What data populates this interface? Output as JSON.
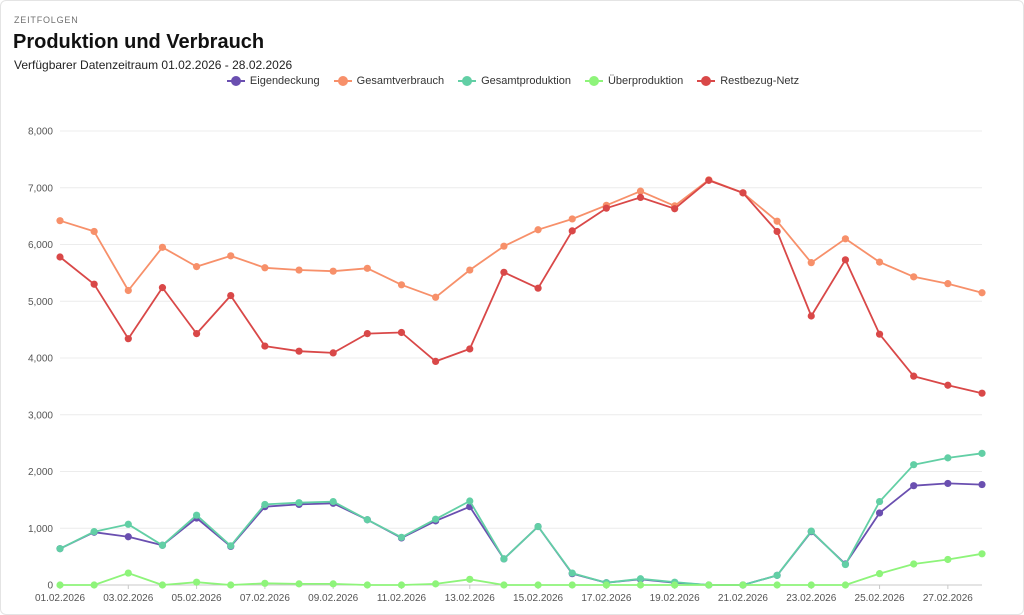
{
  "header": {
    "kicker": "ZEITFOLGEN",
    "title": "Produktion und Verbrauch",
    "subtitle": "Verfügbarer Datenzeitraum 01.02.2026 - 28.02.2026"
  },
  "chart_data": {
    "type": "line",
    "title": "Produktion und Verbrauch",
    "xlabel": "",
    "ylabel": "",
    "ylim": [
      0,
      8000
    ],
    "yticks": [
      "0",
      "1,000",
      "2,000",
      "3,000",
      "4,000",
      "5,000",
      "6,000",
      "7,000",
      "8,000"
    ],
    "grid": true,
    "legend_position": "top-center",
    "x": [
      "01.02.2026",
      "02.02.2026",
      "03.02.2026",
      "04.02.2026",
      "05.02.2026",
      "06.02.2026",
      "07.02.2026",
      "08.02.2026",
      "09.02.2026",
      "10.02.2026",
      "11.02.2026",
      "12.02.2026",
      "13.02.2026",
      "14.02.2026",
      "15.02.2026",
      "16.02.2026",
      "17.02.2026",
      "18.02.2026",
      "19.02.2026",
      "20.02.2026",
      "21.02.2026",
      "22.02.2026",
      "23.02.2026",
      "24.02.2026",
      "25.02.2026",
      "26.02.2026",
      "27.02.2026",
      "28.02.2026"
    ],
    "xtick_labels": [
      "01.02.2026",
      "03.02.2026",
      "05.02.2026",
      "07.02.2026",
      "09.02.2026",
      "11.02.2026",
      "13.02.2026",
      "15.02.2026",
      "17.02.2026",
      "19.02.2026",
      "21.02.2026",
      "23.02.2026",
      "25.02.2026",
      "27.02.2026"
    ],
    "series": [
      {
        "name": "Eigendeckung",
        "color": "#6a4fb0",
        "values": [
          640,
          930,
          850,
          700,
          1180,
          680,
          1380,
          1420,
          1440,
          1150,
          830,
          1130,
          1380,
          460,
          1030,
          200,
          40,
          100,
          40,
          0,
          0,
          170,
          940,
          370,
          1270,
          1750,
          1790,
          1770
        ]
      },
      {
        "name": "Gesamtverbrauch",
        "color": "#f7906a",
        "values": [
          6420,
          6230,
          5190,
          5950,
          5610,
          5800,
          5590,
          5550,
          5530,
          5580,
          5290,
          5070,
          5550,
          5970,
          6260,
          6450,
          6690,
          6940,
          6680,
          7140,
          6910,
          6410,
          5680,
          6100,
          5690,
          5430,
          5310,
          5150
        ]
      },
      {
        "name": "Gesamtproduktion",
        "color": "#62cfa5",
        "values": [
          640,
          940,
          1070,
          700,
          1230,
          690,
          1420,
          1450,
          1470,
          1150,
          840,
          1160,
          1480,
          460,
          1030,
          210,
          40,
          110,
          50,
          0,
          0,
          170,
          950,
          360,
          1470,
          2120,
          2240,
          2320
        ]
      },
      {
        "name": "Überproduktion",
        "color": "#8ef47a",
        "values": [
          0,
          0,
          210,
          0,
          50,
          0,
          30,
          20,
          20,
          0,
          0,
          20,
          100,
          0,
          0,
          0,
          0,
          0,
          0,
          0,
          0,
          0,
          0,
          0,
          200,
          370,
          450,
          550
        ]
      },
      {
        "name": "Restbezug-Netz",
        "color": "#d94848",
        "values": [
          5780,
          5300,
          4340,
          5240,
          4430,
          5100,
          4210,
          4120,
          4090,
          4430,
          4450,
          3940,
          4160,
          5510,
          5230,
          6240,
          6640,
          6830,
          6630,
          7130,
          6910,
          6230,
          4740,
          5730,
          4420,
          3680,
          3520,
          3380
        ]
      }
    ]
  }
}
